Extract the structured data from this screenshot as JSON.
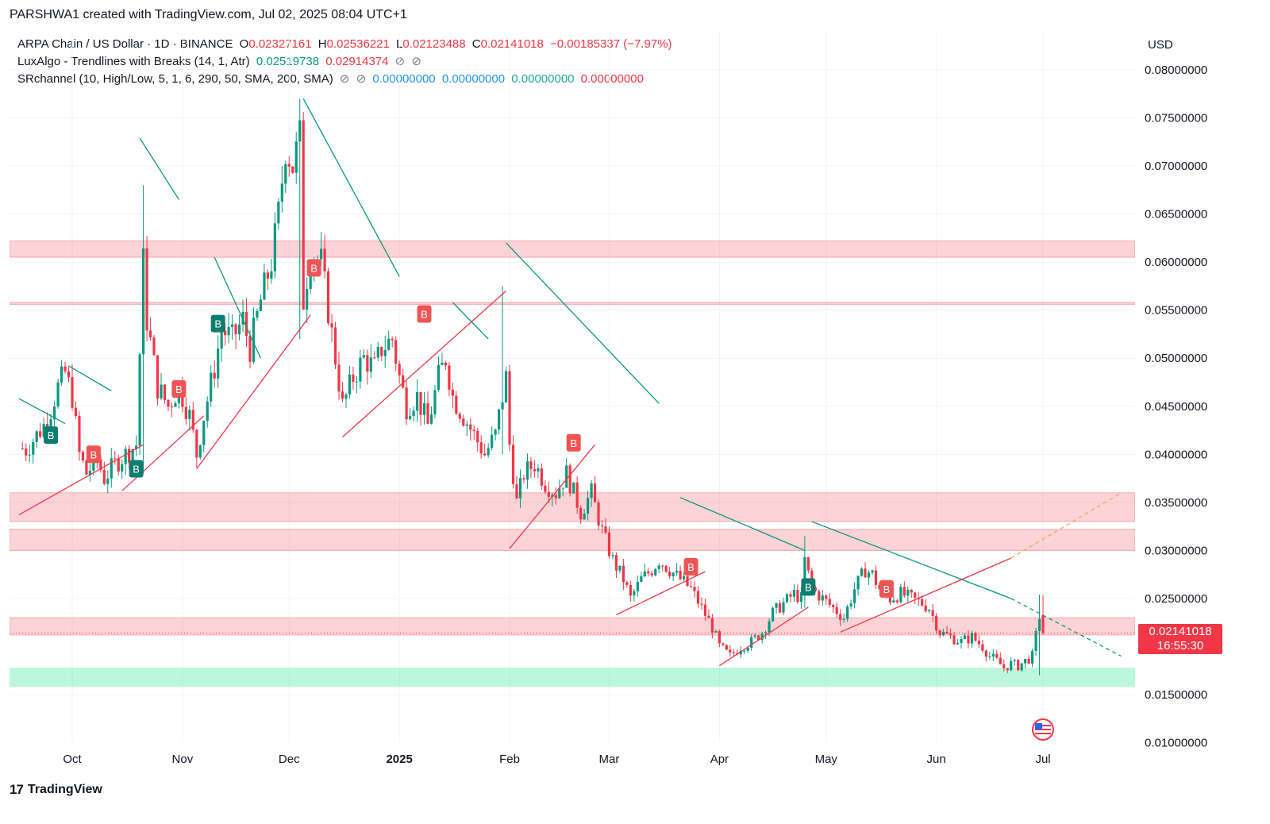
{
  "credit": "PARSHWA1 created with TradingView.com, Jul 02, 2025 08:04 UTC+1",
  "legend": {
    "symbol": "ARPA Chain / US Dollar · 1D · BINANCE",
    "o_label": "O",
    "o_value": "0.02327161",
    "h_label": "H",
    "h_value": "0.02536221",
    "l_label": "L",
    "l_value": "0.02123488",
    "c_label": "C",
    "c_value": "0.02141018",
    "change": "−0.00185337 (−7.97%)",
    "lux_name": "LuxAlgo - Trendlines with Breaks (14, 1, Atr)",
    "lux_v1": "0.02519738",
    "lux_v2": "0.02914374",
    "eye_glyph": "⊘",
    "sr_name": "SRchannel (10, High/Low, 5, 1, 6, 290, 50, SMA, 200, SMA)",
    "sr_v1": "0.00000000",
    "sr_v2": "0.00000000",
    "sr_v3": "0.00000000",
    "sr_v4": "0.00000000"
  },
  "currency": "USD",
  "price_tag": {
    "price": "0.02141018",
    "countdown": "16:55:30"
  },
  "brand": {
    "logo": "17",
    "name": "TradingView"
  },
  "colors": {
    "up": "#089981",
    "down": "#f23645",
    "zone": "#f23645",
    "support": "#22e58a",
    "trend": "#089981"
  },
  "chart_data": {
    "type": "candlestick",
    "title": "ARPA Chain / US Dollar · 1D · BINANCE",
    "ylim": [
      0.01,
      0.082
    ],
    "xlim_days": [
      -14,
      295
    ],
    "y_ticks": [
      "0.08000000",
      "0.07500000",
      "0.07000000",
      "0.06500000",
      "0.06000000",
      "0.05500000",
      "0.05000000",
      "0.04500000",
      "0.04000000",
      "0.03500000",
      "0.03000000",
      "0.02500000",
      "0.01500000",
      "0.01000000"
    ],
    "y_tick_values": [
      0.08,
      0.075,
      0.07,
      0.065,
      0.06,
      0.055,
      0.05,
      0.045,
      0.04,
      0.035,
      0.03,
      0.025,
      0.015,
      0.01
    ],
    "x_ticks": [
      {
        "label": "Oct",
        "day": 0,
        "bold": false
      },
      {
        "label": "Nov",
        "day": 31,
        "bold": false
      },
      {
        "label": "Dec",
        "day": 61,
        "bold": false
      },
      {
        "label": "2025",
        "day": 92,
        "bold": true
      },
      {
        "label": "Feb",
        "day": 123,
        "bold": false
      },
      {
        "label": "Mar",
        "day": 151,
        "bold": false
      },
      {
        "label": "Apr",
        "day": 182,
        "bold": false
      },
      {
        "label": "May",
        "day": 212,
        "bold": false
      },
      {
        "label": "Jun",
        "day": 243,
        "bold": false
      },
      {
        "label": "Jul",
        "day": 273,
        "bold": false
      }
    ],
    "close_path": [
      [
        -17,
        0.041
      ],
      [
        -13,
        0.0405
      ],
      [
        -10,
        0.042
      ],
      [
        -7,
        0.0435
      ],
      [
        -4,
        0.047
      ],
      [
        -2,
        0.0485
      ],
      [
        0,
        0.046
      ],
      [
        2,
        0.04
      ],
      [
        4,
        0.038
      ],
      [
        7,
        0.0395
      ],
      [
        9,
        0.0375
      ],
      [
        12,
        0.039
      ],
      [
        15,
        0.04
      ],
      [
        18,
        0.041
      ],
      [
        20,
        0.06
      ],
      [
        21,
        0.054
      ],
      [
        24,
        0.047
      ],
      [
        27,
        0.045
      ],
      [
        30,
        0.047
      ],
      [
        33,
        0.044
      ],
      [
        35,
        0.04
      ],
      [
        37,
        0.044
      ],
      [
        40,
        0.049
      ],
      [
        42,
        0.053
      ],
      [
        45,
        0.052
      ],
      [
        48,
        0.054
      ],
      [
        50,
        0.051
      ],
      [
        53,
        0.056
      ],
      [
        56,
        0.06
      ],
      [
        58,
        0.065
      ],
      [
        60,
        0.072
      ],
      [
        62,
        0.07
      ],
      [
        64,
        0.073
      ],
      [
        65,
        0.056
      ],
      [
        67,
        0.061
      ],
      [
        70,
        0.06
      ],
      [
        72,
        0.055
      ],
      [
        74,
        0.05
      ],
      [
        76,
        0.045
      ],
      [
        79,
        0.048
      ],
      [
        82,
        0.05
      ],
      [
        85,
        0.049
      ],
      [
        87,
        0.051
      ],
      [
        90,
        0.052
      ],
      [
        92,
        0.048
      ],
      [
        94,
        0.045
      ],
      [
        97,
        0.046
      ],
      [
        100,
        0.043
      ],
      [
        103,
        0.048
      ],
      [
        105,
        0.05
      ],
      [
        107,
        0.046
      ],
      [
        110,
        0.044
      ],
      [
        113,
        0.042
      ],
      [
        116,
        0.04
      ],
      [
        119,
        0.042
      ],
      [
        122,
        0.048
      ],
      [
        123,
        0.041
      ],
      [
        125,
        0.035
      ],
      [
        127,
        0.038
      ],
      [
        130,
        0.039
      ],
      [
        133,
        0.037
      ],
      [
        136,
        0.036
      ],
      [
        139,
        0.038
      ],
      [
        141,
        0.036
      ],
      [
        143,
        0.034
      ],
      [
        146,
        0.036
      ],
      [
        149,
        0.032
      ],
      [
        152,
        0.029
      ],
      [
        155,
        0.027
      ],
      [
        157,
        0.025
      ],
      [
        160,
        0.027
      ],
      [
        163,
        0.028
      ],
      [
        165,
        0.029
      ],
      [
        168,
        0.028
      ],
      [
        171,
        0.027
      ],
      [
        174,
        0.026
      ],
      [
        177,
        0.024
      ],
      [
        180,
        0.022
      ],
      [
        182,
        0.02
      ],
      [
        185,
        0.019
      ],
      [
        188,
        0.02
      ],
      [
        191,
        0.0205
      ],
      [
        194,
        0.0215
      ],
      [
        197,
        0.0235
      ],
      [
        200,
        0.0245
      ],
      [
        203,
        0.0255
      ],
      [
        205,
        0.025
      ],
      [
        206,
        0.029
      ],
      [
        208,
        0.026
      ],
      [
        211,
        0.025
      ],
      [
        214,
        0.024
      ],
      [
        217,
        0.023
      ],
      [
        220,
        0.026
      ],
      [
        223,
        0.028
      ],
      [
        225,
        0.0275
      ],
      [
        227,
        0.026
      ],
      [
        230,
        0.025
      ],
      [
        233,
        0.0255
      ],
      [
        236,
        0.025
      ],
      [
        239,
        0.0245
      ],
      [
        241,
        0.024
      ],
      [
        244,
        0.0215
      ],
      [
        247,
        0.021
      ],
      [
        250,
        0.0205
      ],
      [
        253,
        0.021
      ],
      [
        256,
        0.02
      ],
      [
        258,
        0.019
      ],
      [
        260,
        0.0185
      ],
      [
        262,
        0.0178
      ],
      [
        264,
        0.0182
      ],
      [
        266,
        0.018
      ],
      [
        268,
        0.0185
      ],
      [
        270,
        0.019
      ],
      [
        272,
        0.0232
      ],
      [
        273,
        0.0214
      ]
    ],
    "range_dates": {
      "y": [
        -14,
        -13,
        -12,
        -11,
        -10,
        -9,
        -8,
        -7,
        -6,
        -5,
        -4,
        -3,
        -2,
        -1,
        0,
        1,
        2,
        3,
        4,
        5,
        6,
        7,
        8,
        9,
        10,
        11,
        12,
        13,
        14,
        15,
        16,
        17,
        18,
        19,
        20,
        21,
        22,
        23,
        24,
        25,
        26,
        27,
        28,
        29,
        30,
        31,
        32,
        33,
        34,
        35,
        36,
        37,
        38,
        39,
        40,
        41,
        42,
        43,
        44,
        45,
        46,
        47,
        48,
        49,
        50,
        51,
        52,
        53,
        54,
        55,
        56,
        57,
        58,
        59,
        60,
        61,
        62,
        63,
        64,
        65,
        66,
        67,
        68,
        69,
        70,
        71,
        72,
        73,
        74,
        75,
        76,
        77,
        78,
        79,
        80,
        81,
        82,
        83,
        84,
        85,
        86,
        87,
        88,
        89,
        90,
        91,
        92,
        93,
        94,
        95,
        96,
        97,
        98,
        99,
        100,
        101,
        102,
        103,
        104,
        105,
        106,
        107,
        108,
        109,
        110,
        111,
        112,
        113,
        114,
        115,
        116,
        117,
        118,
        119,
        120,
        121,
        122,
        123,
        124,
        125,
        126,
        127,
        128,
        129,
        130,
        131,
        132,
        133,
        134,
        135,
        136,
        137,
        138,
        139,
        140,
        141,
        142,
        143,
        144,
        145,
        146,
        147,
        148,
        149,
        150,
        151,
        152,
        153,
        154,
        155,
        156,
        157,
        158,
        159,
        160,
        161,
        162,
        163,
        164,
        165,
        166,
        167,
        168,
        169,
        170,
        171,
        172,
        173,
        174,
        175,
        176,
        177,
        178,
        179,
        180,
        181,
        182,
        183,
        184,
        185,
        186,
        187,
        188,
        189,
        190,
        191,
        192,
        193,
        194,
        195,
        196,
        197,
        198,
        199,
        200,
        201,
        202,
        203,
        204,
        205,
        206,
        207,
        208,
        209,
        210,
        211,
        212,
        213,
        214,
        215,
        216,
        217,
        218,
        219,
        220,
        221,
        222,
        223,
        224,
        225,
        226,
        227,
        228,
        229,
        230,
        231,
        232,
        233,
        234,
        235,
        236,
        237,
        238,
        239,
        240,
        241,
        242,
        243,
        244,
        245,
        246,
        247,
        248,
        249,
        250,
        251,
        252,
        253,
        254,
        255,
        256,
        257,
        258,
        259,
        260,
        261,
        262,
        263,
        264,
        265,
        266,
        267,
        268,
        269,
        270,
        271,
        272,
        273
      ]
    },
    "spikes": [
      [
        20,
        0.068,
        0.038
      ],
      [
        64,
        0.077,
        0.052
      ],
      [
        121,
        0.0575,
        0.04
      ],
      [
        206,
        0.0315,
        0.024
      ],
      [
        272,
        0.0254,
        0.017
      ]
    ],
    "resistance_zones": [
      [
        0.0605,
        0.0622
      ],
      [
        0.0556,
        0.0558
      ],
      [
        0.033,
        0.036
      ],
      [
        0.03,
        0.0322
      ],
      [
        0.0212,
        0.023
      ]
    ],
    "support_zone": [
      0.0158,
      0.0178
    ],
    "green_trendlines": [
      [
        [
          -15,
          0.0458
        ],
        [
          -2,
          0.0432
        ]
      ],
      [
        [
          -1,
          0.0492
        ],
        [
          11,
          0.0466
        ]
      ],
      [
        [
          19,
          0.0729
        ],
        [
          30,
          0.0665
        ]
      ],
      [
        [
          40,
          0.0605
        ],
        [
          53,
          0.05
        ]
      ],
      [
        [
          65,
          0.077
        ],
        [
          92,
          0.0585
        ]
      ],
      [
        [
          107,
          0.0558
        ],
        [
          117,
          0.052
        ]
      ],
      [
        [
          122,
          0.062
        ],
        [
          165,
          0.0453
        ]
      ],
      [
        [
          171,
          0.0355
        ],
        [
          206,
          0.03
        ]
      ],
      [
        [
          208,
          0.033
        ],
        [
          264,
          0.025
        ]
      ]
    ],
    "green_trend_dash": [
      [
        [
          264,
          0.025
        ],
        [
          295,
          0.019
        ]
      ]
    ],
    "red_trendlines": [
      [
        [
          -15,
          0.0337
        ],
        [
          20,
          0.041
        ]
      ],
      [
        [
          14,
          0.0362
        ],
        [
          37,
          0.044
        ]
      ],
      [
        [
          35,
          0.0385
        ],
        [
          67,
          0.0545
        ]
      ],
      [
        [
          76,
          0.0418
        ],
        [
          122,
          0.057
        ]
      ],
      [
        [
          123,
          0.0302
        ],
        [
          147,
          0.041
        ]
      ],
      [
        [
          153,
          0.0233
        ],
        [
          178,
          0.0278
        ]
      ],
      [
        [
          182,
          0.018
        ],
        [
          207,
          0.0241
        ]
      ],
      [
        [
          216,
          0.0215
        ],
        [
          264,
          0.0292
        ]
      ]
    ],
    "red_trend_dash": [
      [
        [
          264,
          0.0292
        ],
        [
          295,
          0.036
        ]
      ]
    ],
    "break_labels": [
      {
        "text": "B",
        "kind": "bull",
        "day": -6,
        "price": 0.042
      },
      {
        "text": "B",
        "kind": "bear",
        "day": 6,
        "price": 0.04
      },
      {
        "text": "B",
        "kind": "bull",
        "day": 18,
        "price": 0.0385
      },
      {
        "text": "B",
        "kind": "bear",
        "day": 30,
        "price": 0.0468
      },
      {
        "text": "B",
        "kind": "bull",
        "day": 41,
        "price": 0.0536
      },
      {
        "text": "B",
        "kind": "bear",
        "day": 68,
        "price": 0.0594
      },
      {
        "text": "B",
        "kind": "bear",
        "day": 99,
        "price": 0.0546
      },
      {
        "text": "B",
        "kind": "bear",
        "day": 141,
        "price": 0.0412
      },
      {
        "text": "B",
        "kind": "bear",
        "day": 174,
        "price": 0.0283
      },
      {
        "text": "B",
        "kind": "bull",
        "day": 207,
        "price": 0.0262
      },
      {
        "text": "B",
        "kind": "bear",
        "day": 229,
        "price": 0.026
      }
    ],
    "last_price": 0.02141018
  }
}
